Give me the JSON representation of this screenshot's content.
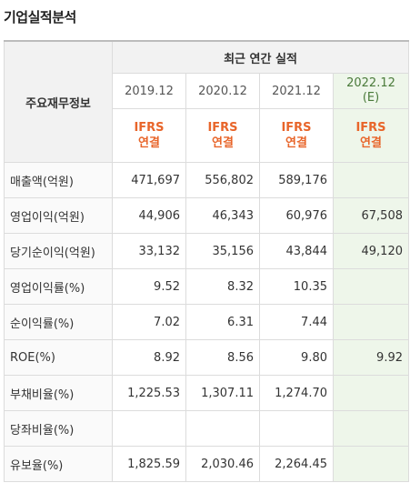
{
  "title": "기업실적분석",
  "header": {
    "main_label": "주요재무정보",
    "group_label": "최근 연간 실적",
    "years": [
      "2019.12",
      "2020.12",
      "2021.12"
    ],
    "est_year": "2022.12",
    "est_mark": "(E)",
    "standard_top": "IFRS",
    "standard_bottom": "연결"
  },
  "rows": [
    {
      "label": "매출액(억원)",
      "values": [
        "471,697",
        "556,802",
        "589,176",
        ""
      ]
    },
    {
      "label": "영업이익(억원)",
      "values": [
        "44,906",
        "46,343",
        "60,976",
        "67,508"
      ]
    },
    {
      "label": "당기순이익(억원)",
      "values": [
        "33,132",
        "35,156",
        "43,844",
        "49,120"
      ]
    },
    {
      "label": "영업이익률(%)",
      "values": [
        "9.52",
        "8.32",
        "10.35",
        ""
      ]
    },
    {
      "label": "순이익률(%)",
      "values": [
        "7.02",
        "6.31",
        "7.44",
        ""
      ]
    },
    {
      "label": "ROE(%)",
      "values": [
        "8.92",
        "8.56",
        "9.80",
        "9.92"
      ]
    },
    {
      "label": "부채비율(%)",
      "values": [
        "1,225.53",
        "1,307.11",
        "1,274.70",
        ""
      ]
    },
    {
      "label": "당좌비율(%)",
      "values": [
        "",
        "",
        "",
        ""
      ]
    },
    {
      "label": "유보율(%)",
      "values": [
        "1,825.59",
        "2,030.46",
        "2,264.45",
        ""
      ]
    }
  ]
}
